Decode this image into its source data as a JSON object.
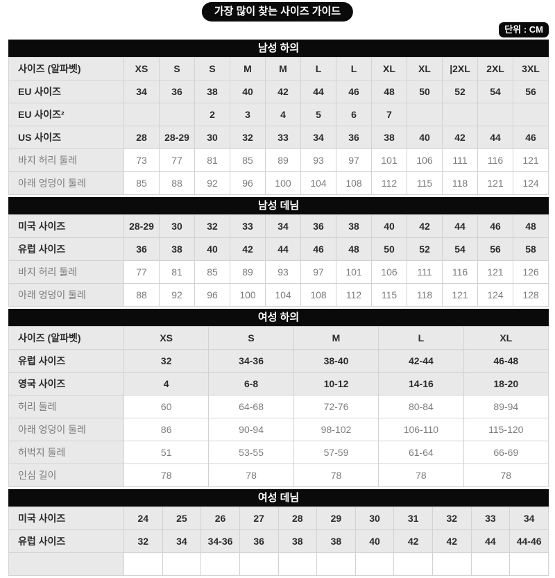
{
  "page": {
    "title_pill": "가장 많이 찾는 사이즈 가이드",
    "unit_badge": "단위 : CM"
  },
  "colors": {
    "bar_bg": "#0a0a0a",
    "row_gray": "#e9e9e9",
    "row_white": "#ffffff",
    "border": "#d2d2d2",
    "text_dark": "#2b2b2b",
    "text_muted": "#7c7c7c"
  },
  "tables": [
    {
      "title": "남성 하의",
      "columns": 12,
      "clipped_row": false,
      "rows": [
        {
          "label": "사이즈 (알파벳)",
          "style": "size",
          "cells": [
            "XS",
            "S",
            "S",
            "M",
            "M",
            "L",
            "L",
            "XL",
            "XL",
            "|2XL",
            "2XL",
            "3XL"
          ]
        },
        {
          "label": "EU 사이즈",
          "style": "size",
          "cells": [
            "34",
            "36",
            "38",
            "40",
            "42",
            "44",
            "46",
            "48",
            "50",
            "52",
            "54",
            "56"
          ]
        },
        {
          "label": "EU 사이즈²",
          "style": "size",
          "cells": [
            "",
            "",
            "2",
            "3",
            "4",
            "5",
            "6",
            "7",
            "",
            "",
            "",
            ""
          ]
        },
        {
          "label": "US 사이즈",
          "style": "size",
          "cells": [
            "28",
            "28-29",
            "30",
            "32",
            "33",
            "34",
            "36",
            "38",
            "40",
            "42",
            "44",
            "46"
          ]
        },
        {
          "label": "바지 허리 둘레",
          "style": "measure",
          "cells": [
            "73",
            "77",
            "81",
            "85",
            "89",
            "93",
            "97",
            "101",
            "106",
            "111",
            "116",
            "121"
          ]
        },
        {
          "label": "아래 엉덩이 둘레",
          "style": "measure",
          "cells": [
            "85",
            "88",
            "92",
            "96",
            "100",
            "104",
            "108",
            "112",
            "115",
            "118",
            "121",
            "124"
          ]
        }
      ]
    },
    {
      "title": "남성 데님",
      "columns": 12,
      "clipped_row": false,
      "rows": [
        {
          "label": "미국 사이즈",
          "style": "size",
          "cells": [
            "28-29",
            "30",
            "32",
            "33",
            "34",
            "36",
            "38",
            "40",
            "42",
            "44",
            "46",
            "48"
          ]
        },
        {
          "label": "유럽 사이즈",
          "style": "size",
          "cells": [
            "36",
            "38",
            "40",
            "42",
            "44",
            "46",
            "48",
            "50",
            "52",
            "54",
            "56",
            "58"
          ]
        },
        {
          "label": "바지 허리 둘레",
          "style": "measure",
          "cells": [
            "77",
            "81",
            "85",
            "89",
            "93",
            "97",
            "101",
            "106",
            "111",
            "116",
            "121",
            "126"
          ]
        },
        {
          "label": "아래 엉덩이 둘레",
          "style": "measure",
          "cells": [
            "88",
            "92",
            "96",
            "100",
            "104",
            "108",
            "112",
            "115",
            "118",
            "121",
            "124",
            "128"
          ]
        }
      ]
    },
    {
      "title": "여성 하의",
      "columns": 5,
      "clipped_row": false,
      "rows": [
        {
          "label": "사이즈 (알파벳)",
          "style": "size",
          "cells": [
            "XS",
            "S",
            "M",
            "L",
            "XL"
          ]
        },
        {
          "label": "유럽 사이즈",
          "style": "size",
          "cells": [
            "32",
            "34-36",
            "38-40",
            "42-44",
            "46-48"
          ]
        },
        {
          "label": "영국 사이즈",
          "style": "size",
          "cells": [
            "4",
            "6-8",
            "10-12",
            "14-16",
            "18-20"
          ]
        },
        {
          "label": "허리 둘레",
          "style": "measure",
          "cells": [
            "60",
            "64-68",
            "72-76",
            "80-84",
            "89-94"
          ]
        },
        {
          "label": "아래 엉덩이 둘레",
          "style": "measure",
          "cells": [
            "86",
            "90-94",
            "98-102",
            "106-110",
            "115-120"
          ]
        },
        {
          "label": "허벅지 둘레",
          "style": "measure",
          "cells": [
            "51",
            "53-55",
            "57-59",
            "61-64",
            "66-69"
          ]
        },
        {
          "label": "인심 길이",
          "style": "measure",
          "cells": [
            "78",
            "78",
            "78",
            "78",
            "78"
          ]
        }
      ]
    },
    {
      "title": "여성 데님",
      "columns": 11,
      "clipped_row": true,
      "rows": [
        {
          "label": "미국 사이즈",
          "style": "size",
          "cells": [
            "24",
            "25",
            "26",
            "27",
            "28",
            "29",
            "30",
            "31",
            "32",
            "33",
            "34"
          ]
        },
        {
          "label": "유럽 사이즈",
          "style": "size",
          "cells": [
            "32",
            "34",
            "34-36",
            "36",
            "38",
            "38",
            "40",
            "42",
            "42",
            "44",
            "44-46"
          ]
        }
      ]
    }
  ]
}
